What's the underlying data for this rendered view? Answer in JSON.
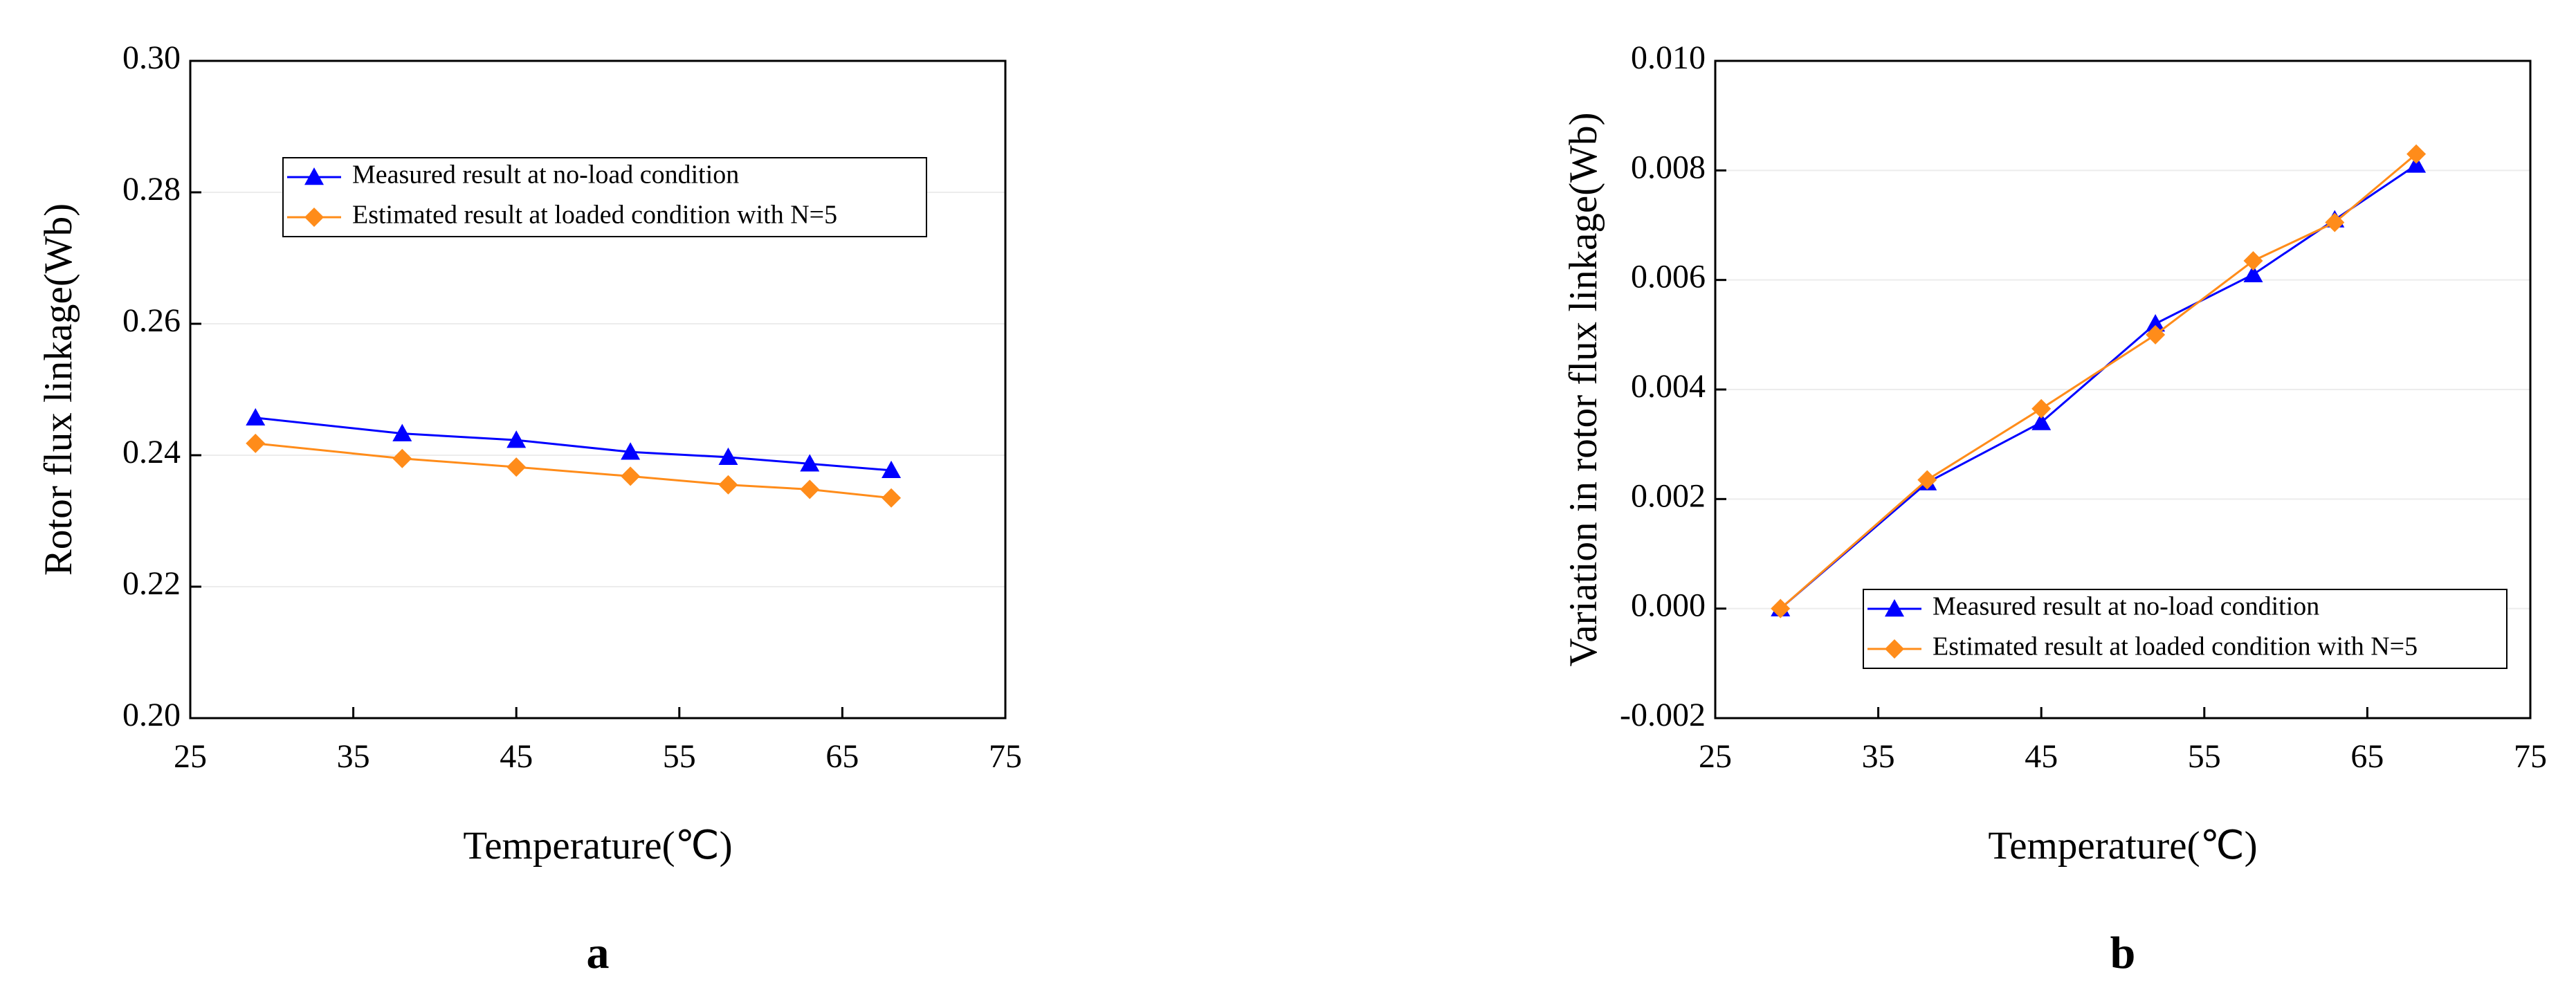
{
  "chart_data": [
    {
      "type": "line",
      "panel_label": "a",
      "xlabel": "Temperature(℃)",
      "ylabel": "Rotor flux linkage(Wb)",
      "x": [
        29,
        38,
        45,
        52,
        58,
        63,
        68
      ],
      "series": [
        {
          "name": "Measured result at no-load condition",
          "color": "#0000ff",
          "marker": "triangle",
          "values": [
            0.2457,
            0.2433,
            0.2423,
            0.2405,
            0.2397,
            0.2387,
            0.2377
          ]
        },
        {
          "name": "Estimated result at loaded condition with N=5",
          "color": "#ff8c1a",
          "marker": "diamond",
          "values": [
            0.2418,
            0.2395,
            0.2382,
            0.2368,
            0.2355,
            0.2348,
            0.2335
          ]
        }
      ],
      "xlim": [
        25,
        75
      ],
      "xticks": [
        25,
        35,
        45,
        55,
        65,
        75
      ],
      "ylim": [
        0.2,
        0.3
      ],
      "yticks": [
        {
          "value": 0.2,
          "label": "0.20"
        },
        0.22,
        0.24,
        0.26,
        0.28,
        {
          "value": 0.3,
          "label": "0.30"
        }
      ],
      "grid": true,
      "legend": "upper center"
    },
    {
      "type": "line",
      "panel_label": "b",
      "xlabel": "Temperature(℃)",
      "ylabel": "Variation in rotor flux linkage(Wb)",
      "x": [
        29,
        38,
        45,
        52,
        58,
        63,
        68
      ],
      "series": [
        {
          "name": "Measured result at no-load condition",
          "color": "#0000ff",
          "marker": "triangle",
          "values": [
            0,
            0.0023,
            0.0034,
            0.0052,
            0.0061,
            0.0071,
            0.0081
          ]
        },
        {
          "name": "Estimated result at loaded condition with N=5",
          "color": "#ff8c1a",
          "marker": "diamond",
          "values": [
            0,
            0.00235,
            0.00365,
            0.005,
            0.00635,
            0.00705,
            0.0083
          ]
        }
      ],
      "xlim": [
        25,
        75
      ],
      "xticks": [
        25,
        35,
        45,
        55,
        65,
        75
      ],
      "ylim": [
        -0.002,
        0.01
      ],
      "yticks": [
        {
          "value": -0.002,
          "label": "-0.002"
        },
        {
          "value": 0,
          "label": "0.000"
        },
        0.002,
        0.004,
        0.006,
        0.008,
        {
          "value": 0.01,
          "label": "0.010"
        }
      ],
      "grid": true,
      "legend": "lower right"
    }
  ]
}
